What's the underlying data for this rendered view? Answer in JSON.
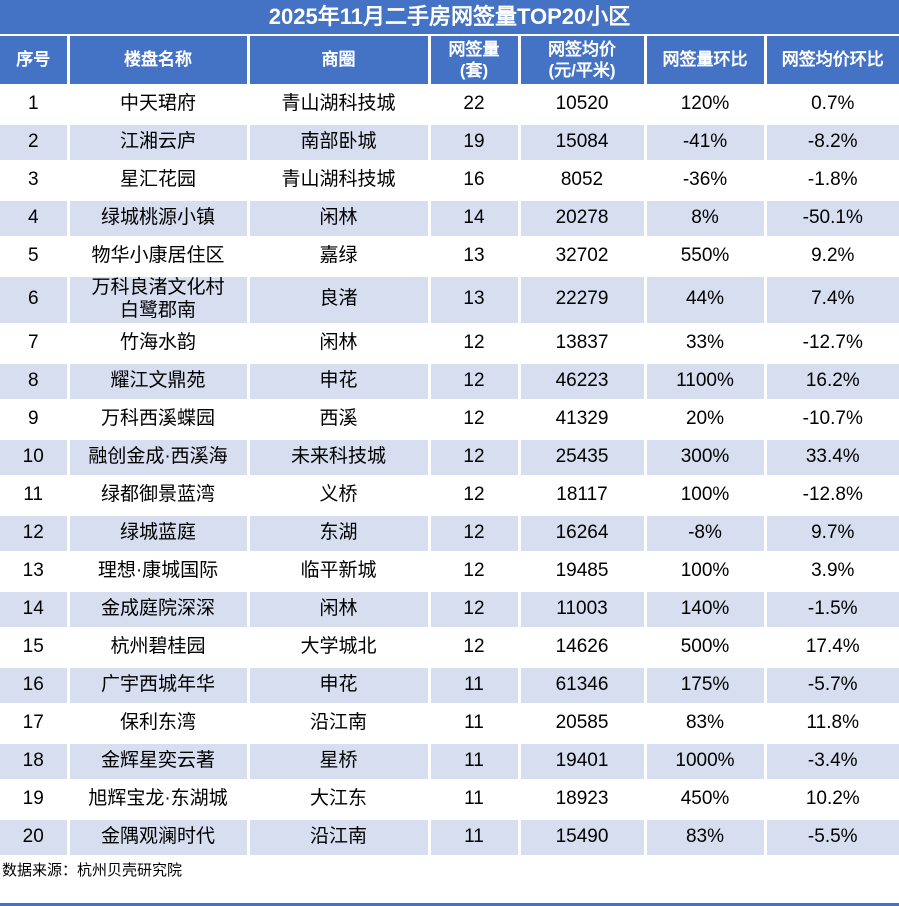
{
  "page": {
    "title": "2025年11月二手房网签量TOP20小区",
    "source_note": "数据来源：杭州贝壳研究院"
  },
  "colors": {
    "header_blue": "#4472C4",
    "band_light_blue": "#D6DEF0",
    "band_white": "#FFFFFF",
    "header_text": "#FFFFFF",
    "body_text": "#000000"
  },
  "chart_data": {
    "type": "table",
    "title": "2025年11月二手房网签量TOP20小区",
    "columns": [
      "序号",
      "楼盘名称",
      "商圈",
      "网签量(套)",
      "网签均价(元/平米)",
      "网签量环比",
      "网签均价环比"
    ],
    "header_display": [
      "序号",
      "楼盘名称",
      "商圈",
      "网签量\n(套)",
      "网签均价\n(元/平米)",
      "网签量环比",
      "网签均价环比"
    ],
    "column_keys": [
      "rank",
      "name",
      "district",
      "volume",
      "avg-price",
      "volume-mom",
      "price-mom"
    ],
    "rows": [
      [
        "1",
        "中天珺府",
        "青山湖科技城",
        "22",
        "10520",
        "120%",
        "0.7%"
      ],
      [
        "2",
        "江湘云庐",
        "南部卧城",
        "19",
        "15084",
        "-41%",
        "-8.2%"
      ],
      [
        "3",
        "星汇花园",
        "青山湖科技城",
        "16",
        "8052",
        "-36%",
        "-1.8%"
      ],
      [
        "4",
        "绿城桃源小镇",
        "闲林",
        "14",
        "20278",
        "8%",
        "-50.1%"
      ],
      [
        "5",
        "物华小康居住区",
        "嘉绿",
        "13",
        "32702",
        "550%",
        "9.2%"
      ],
      [
        "6",
        "万科良渚文化村\n白鹭郡南",
        "良渚",
        "13",
        "22279",
        "44%",
        "7.4%"
      ],
      [
        "7",
        "竹海水韵",
        "闲林",
        "12",
        "13837",
        "33%",
        "-12.7%"
      ],
      [
        "8",
        "耀江文鼎苑",
        "申花",
        "12",
        "46223",
        "1100%",
        "16.2%"
      ],
      [
        "9",
        "万科西溪蝶园",
        "西溪",
        "12",
        "41329",
        "20%",
        "-10.7%"
      ],
      [
        "10",
        "融创金成·西溪海",
        "未来科技城",
        "12",
        "25435",
        "300%",
        "33.4%"
      ],
      [
        "11",
        "绿都御景蓝湾",
        "义桥",
        "12",
        "18117",
        "100%",
        "-12.8%"
      ],
      [
        "12",
        "绿城蓝庭",
        "东湖",
        "12",
        "16264",
        "-8%",
        "9.7%"
      ],
      [
        "13",
        "理想·康城国际",
        "临平新城",
        "12",
        "19485",
        "100%",
        "3.9%"
      ],
      [
        "14",
        "金成庭院深深",
        "闲林",
        "12",
        "11003",
        "140%",
        "-1.5%"
      ],
      [
        "15",
        "杭州碧桂园",
        "大学城北",
        "12",
        "14626",
        "500%",
        "17.4%"
      ],
      [
        "16",
        "广宇西城年华",
        "申花",
        "11",
        "61346",
        "175%",
        "-5.7%"
      ],
      [
        "17",
        "保利东湾",
        "沿江南",
        "11",
        "20585",
        "83%",
        "11.8%"
      ],
      [
        "18",
        "金辉星奕云著",
        "星桥",
        "11",
        "19401",
        "1000%",
        "-3.4%"
      ],
      [
        "19",
        "旭辉宝龙·东湖城",
        "大江东",
        "11",
        "18923",
        "450%",
        "10.2%"
      ],
      [
        "20",
        "金隅观澜时代",
        "沿江南",
        "11",
        "15490",
        "83%",
        "-5.5%"
      ]
    ],
    "source": "数据来源：杭州贝壳研究院",
    "layout": {
      "banding": "alternate-white-lightblue",
      "gridlines": "white",
      "header_rows": 1
    }
  }
}
